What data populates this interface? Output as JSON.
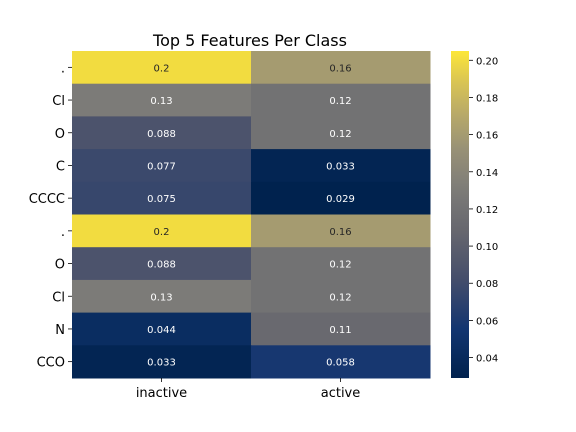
{
  "chart_data": {
    "type": "heatmap",
    "title": "Top 5 Features Per Class",
    "xlabel": "",
    "ylabel": "",
    "columns": [
      "inactive",
      "active"
    ],
    "rows": [
      ".",
      "Cl",
      "O",
      "C",
      "CCCC",
      ".",
      "O",
      "Cl",
      "N",
      "CCO"
    ],
    "values": [
      [
        0.2,
        0.16
      ],
      [
        0.13,
        0.12
      ],
      [
        0.088,
        0.12
      ],
      [
        0.077,
        0.033
      ],
      [
        0.075,
        0.029
      ],
      [
        0.2,
        0.16
      ],
      [
        0.088,
        0.12
      ],
      [
        0.13,
        0.12
      ],
      [
        0.044,
        0.11
      ],
      [
        0.033,
        0.058
      ]
    ],
    "cell_labels": [
      [
        "0.2",
        "0.16"
      ],
      [
        "0.13",
        "0.12"
      ],
      [
        "0.088",
        "0.12"
      ],
      [
        "0.077",
        "0.033"
      ],
      [
        "0.075",
        "0.029"
      ],
      [
        "0.2",
        "0.16"
      ],
      [
        "0.088",
        "0.12"
      ],
      [
        "0.13",
        "0.12"
      ],
      [
        "0.044",
        "0.11"
      ],
      [
        "0.033",
        "0.058"
      ]
    ],
    "colorbar": {
      "colormap": "cividis",
      "vmin": 0.029,
      "vmax": 0.205,
      "ticks": [
        0.04,
        0.06,
        0.08,
        0.1,
        0.12,
        0.14,
        0.16,
        0.18,
        0.2
      ],
      "tick_labels": [
        "0.04",
        "0.06",
        "0.08",
        "0.10",
        "0.12",
        "0.14",
        "0.16",
        "0.18",
        "0.20"
      ]
    },
    "grid": false
  }
}
